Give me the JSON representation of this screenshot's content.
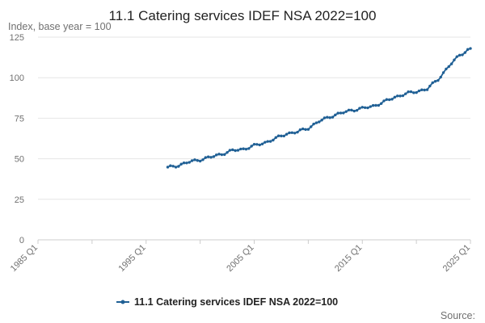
{
  "chart_data": {
    "type": "line",
    "title": "11.1 Catering services IDEF NSA 2022=100",
    "ylabel": "Index, base year = 100",
    "xlabel": "",
    "source_label": "Source:",
    "x_range": [
      1985.0,
      2025.0
    ],
    "ylim": [
      0,
      125
    ],
    "y_ticks": [
      0,
      25,
      50,
      75,
      100,
      125
    ],
    "x_ticks": [
      {
        "label": "1985 Q1",
        "value": 1985.0
      },
      {
        "label": "1995 Q1",
        "value": 1995.0
      },
      {
        "label": "2005 Q1",
        "value": 2005.0
      },
      {
        "label": "2015 Q1",
        "value": 2015.0
      },
      {
        "label": "2025 Q1",
        "value": 2025.0
      }
    ],
    "minor_tick_step": 5,
    "grid": "horizontal",
    "legend_position": "bottom",
    "series": [
      {
        "name": "11.1 Catering services IDEF NSA 2022=100",
        "color": "#206095",
        "anchors": [
          [
            1997.0,
            44.5
          ],
          [
            1998.0,
            46.0
          ],
          [
            1999.0,
            48.0
          ],
          [
            2000.0,
            49.5
          ],
          [
            2001.0,
            51.0
          ],
          [
            2002.0,
            53.0
          ],
          [
            2003.0,
            55.0
          ],
          [
            2004.0,
            56.0
          ],
          [
            2005.0,
            58.0
          ],
          [
            2006.0,
            60.0
          ],
          [
            2007.0,
            62.5
          ],
          [
            2008.0,
            65.5
          ],
          [
            2009.0,
            66.5
          ],
          [
            2010.0,
            69.0
          ],
          [
            2011.0,
            73.0
          ],
          [
            2012.0,
            76.0
          ],
          [
            2013.0,
            78.0
          ],
          [
            2014.0,
            80.0
          ],
          [
            2015.0,
            81.0
          ],
          [
            2016.0,
            82.5
          ],
          [
            2017.0,
            85.0
          ],
          [
            2018.0,
            88.0
          ],
          [
            2019.0,
            90.0
          ],
          [
            2020.0,
            91.5
          ],
          [
            2021.0,
            93.0
          ],
          [
            2022.0,
            99.0
          ],
          [
            2023.0,
            107.0
          ],
          [
            2024.0,
            114.0
          ],
          [
            2025.0,
            118.0
          ]
        ]
      }
    ]
  }
}
